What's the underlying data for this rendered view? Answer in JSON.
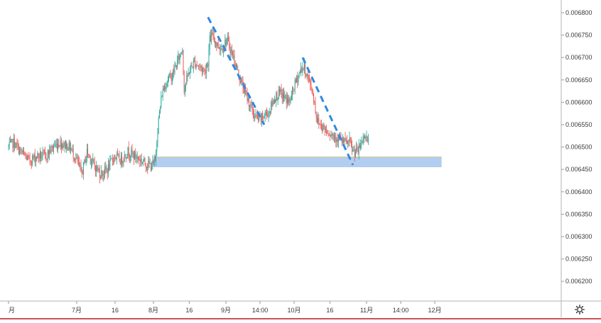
{
  "chart_data": {
    "type": "candlestick",
    "title": "",
    "xlabel": "",
    "ylabel": "",
    "ylim": [
      0.00617,
      0.00682
    ],
    "y_ticks": [
      "0.006800",
      "0.006750",
      "0.006700",
      "0.006650",
      "0.006600",
      "0.006550",
      "0.006500",
      "0.006450",
      "0.006400",
      "0.006350",
      "0.006300",
      "0.006250",
      "0.006200"
    ],
    "x_ticks": [
      {
        "label": "月",
        "i": 0
      },
      {
        "label": "7月",
        "i": 80
      },
      {
        "label": "16",
        "i": 125
      },
      {
        "label": "8月",
        "i": 170
      },
      {
        "label": "16",
        "i": 212
      },
      {
        "label": "9月",
        "i": 255
      },
      {
        "label": "14:00",
        "i": 295
      },
      {
        "label": "10月",
        "i": 335
      },
      {
        "label": "16",
        "i": 377
      },
      {
        "label": "11月",
        "i": 420
      },
      {
        "label": "14:00",
        "i": 460
      },
      {
        "label": "12月",
        "i": 500
      }
    ],
    "up_color": "#26a69a",
    "down_color": "#ef5350",
    "path_points": [
      [
        0,
        0.0065
      ],
      [
        6,
        0.00651
      ],
      [
        14,
        0.00649
      ],
      [
        24,
        0.00647
      ],
      [
        34,
        0.00648
      ],
      [
        44,
        0.00648
      ],
      [
        52,
        0.0065
      ],
      [
        60,
        0.00651
      ],
      [
        66,
        0.006505
      ],
      [
        72,
        0.0065
      ],
      [
        80,
        0.00647
      ],
      [
        86,
        0.00644
      ],
      [
        92,
        0.00649
      ],
      [
        100,
        0.00646
      ],
      [
        108,
        0.00644
      ],
      [
        116,
        0.00645
      ],
      [
        124,
        0.00648
      ],
      [
        132,
        0.00647
      ],
      [
        140,
        0.00649
      ],
      [
        148,
        0.00648
      ],
      [
        156,
        0.00647
      ],
      [
        164,
        0.00646
      ],
      [
        170,
        0.00646
      ],
      [
        172,
        0.00647
      ],
      [
        174,
        0.00652
      ],
      [
        176,
        0.00656
      ],
      [
        180,
        0.00662
      ],
      [
        186,
        0.00665
      ],
      [
        192,
        0.00666
      ],
      [
        198,
        0.00669
      ],
      [
        204,
        0.00672
      ],
      [
        206,
        0.00663
      ],
      [
        212,
        0.00667
      ],
      [
        218,
        0.00669
      ],
      [
        224,
        0.00668
      ],
      [
        230,
        0.00667
      ],
      [
        234,
        0.00669
      ],
      [
        236,
        0.00674
      ],
      [
        240,
        0.00675
      ],
      [
        244,
        0.00673
      ],
      [
        250,
        0.00672
      ],
      [
        256,
        0.00674
      ],
      [
        260,
        0.00672
      ],
      [
        264,
        0.0067
      ],
      [
        270,
        0.00666
      ],
      [
        276,
        0.00663
      ],
      [
        282,
        0.0066
      ],
      [
        288,
        0.00657
      ],
      [
        294,
        0.00656
      ],
      [
        300,
        0.00657
      ],
      [
        306,
        0.00658
      ],
      [
        312,
        0.00661
      ],
      [
        318,
        0.00662
      ],
      [
        324,
        0.00661
      ],
      [
        330,
        0.0066
      ],
      [
        334,
        0.00663
      ],
      [
        338,
        0.00665
      ],
      [
        342,
        0.00667
      ],
      [
        346,
        0.00668
      ],
      [
        350,
        0.00666
      ],
      [
        354,
        0.00664
      ],
      [
        358,
        0.00661
      ],
      [
        362,
        0.00656
      ],
      [
        366,
        0.00655
      ],
      [
        372,
        0.00654
      ],
      [
        378,
        0.00653
      ],
      [
        386,
        0.00652
      ],
      [
        394,
        0.00651
      ],
      [
        400,
        0.00651
      ],
      [
        404,
        0.00649
      ],
      [
        410,
        0.00649
      ],
      [
        414,
        0.00651
      ],
      [
        418,
        0.00653
      ],
      [
        422,
        0.00651
      ]
    ],
    "n_candles": 423,
    "support_zone": {
      "from": 0.006455,
      "to": 0.006478,
      "i_start": 170,
      "i_end": 508
    },
    "trendlines": [
      {
        "start": [
          234,
          0.00679
        ],
        "end": [
          300,
          0.00655
        ]
      },
      {
        "start": [
          345,
          0.0067
        ],
        "end": [
          404,
          0.00646
        ]
      }
    ]
  },
  "icons": {
    "settings": "gear-icon"
  }
}
